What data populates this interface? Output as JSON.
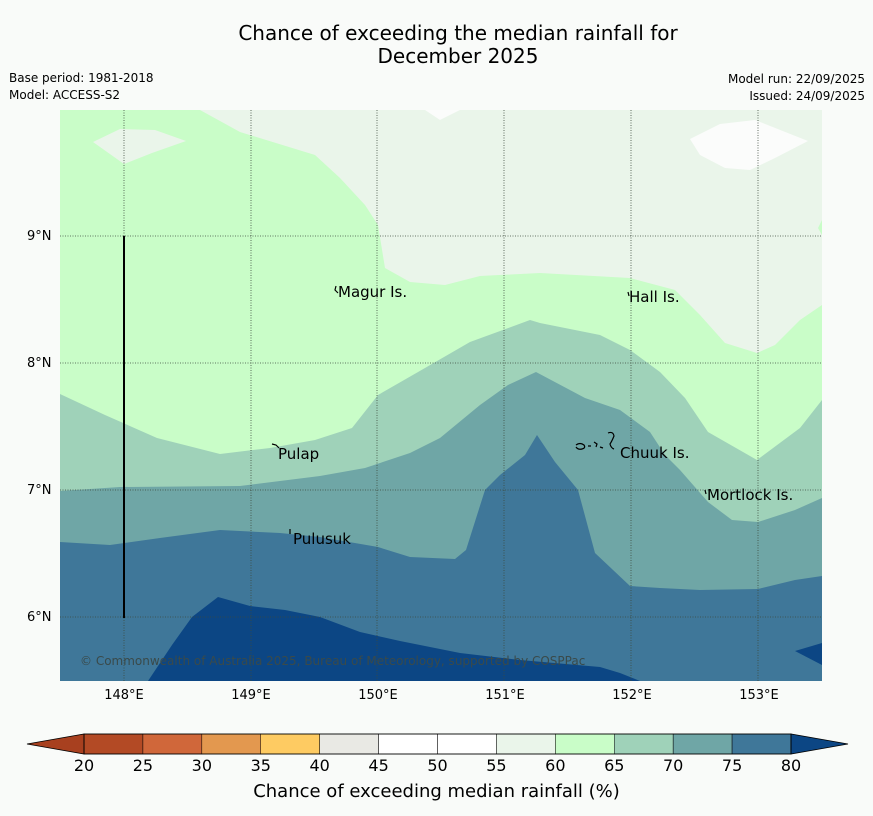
{
  "header": {
    "title_line1": "Chance of exceeding the median rainfall for",
    "title_line2": "December 2025",
    "base_period": "Base period: 1981-2018",
    "model": "Model: ACCESS-S2",
    "model_run": "Model run: 22/09/2025",
    "issued": "Issued: 24/09/2025"
  },
  "map": {
    "lat_labels": [
      "9°N",
      "8°N",
      "7°N",
      "6°N"
    ],
    "lon_labels": [
      "148°E",
      "149°E",
      "150°E",
      "151°E",
      "152°E",
      "153°E"
    ],
    "places": [
      "Magur Is.",
      "Hall Is.",
      "Pulap",
      "Chuuk Is.",
      "Mortlock Is.",
      "Pulusuk"
    ],
    "copyright": "© Commonwealth of Australia 2025, Bureau of Meteorology, supported by COSPPac"
  },
  "colorbar": {
    "ticks": [
      "20",
      "25",
      "30",
      "35",
      "40",
      "45",
      "50",
      "55",
      "60",
      "65",
      "70",
      "75",
      "80"
    ],
    "colors": [
      "#a8401f",
      "#b34a25",
      "#d0673a",
      "#e3984f",
      "#fecb62",
      "#e9e9e4",
      "#ffffff",
      "#ffffff",
      "#eaf5ea",
      "#c9fdc8",
      "#9fd2b9",
      "#6fa6a6",
      "#3f7799",
      "#0c4684"
    ],
    "label": "Chance of exceeding median rainfall (%)"
  }
}
